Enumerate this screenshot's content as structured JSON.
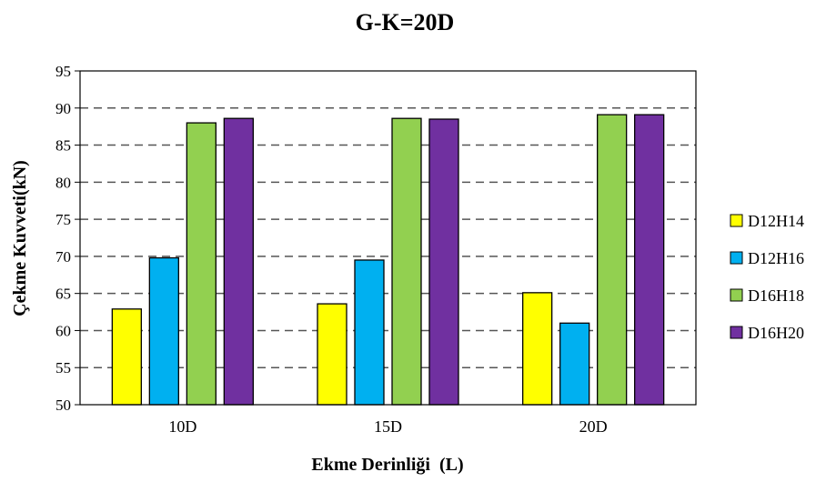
{
  "chart_data": {
    "type": "bar",
    "title": "G-K=20D",
    "xlabel": "Ekme Derinliği  (L)",
    "ylabel": "Çekme Kuvveti(kN)",
    "ylim": [
      50,
      95
    ],
    "yticks": [
      50,
      55,
      60,
      65,
      70,
      75,
      80,
      85,
      90,
      95
    ],
    "grid": true,
    "legend_position": "right",
    "categories": [
      "10D",
      "15D",
      "20D"
    ],
    "series": [
      {
        "name": "D12H14",
        "color": "#FFFF00",
        "values": [
          62.9,
          63.6,
          65.1
        ]
      },
      {
        "name": "D12H16",
        "color": "#00B0F0",
        "values": [
          69.8,
          69.5,
          61.0
        ]
      },
      {
        "name": "D16H18",
        "color": "#92D050",
        "values": [
          88.0,
          88.6,
          89.1
        ]
      },
      {
        "name": "D16H20",
        "color": "#7030A0",
        "values": [
          88.6,
          88.5,
          89.1
        ]
      }
    ]
  }
}
